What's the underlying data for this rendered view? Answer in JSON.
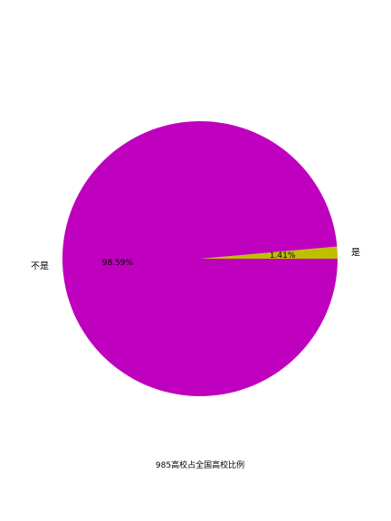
{
  "chart_data": {
    "type": "pie",
    "title": "",
    "caption": "985高校占全国高校比例",
    "slices": [
      {
        "label": "是",
        "value": 1.41,
        "pct_label": "1.41%",
        "color": "#bfbf00"
      },
      {
        "label": "不是",
        "value": 98.59,
        "pct_label": "98.59%",
        "color": "#bf00bf"
      }
    ],
    "start_angle_deg": 0,
    "direction": "counterclockwise",
    "legend": "none"
  }
}
